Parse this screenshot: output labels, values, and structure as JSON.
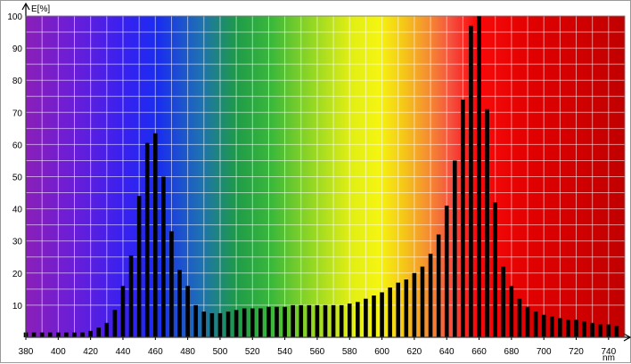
{
  "chart_data": {
    "type": "bar",
    "ylabel": "E[%]",
    "xlabel": "nm",
    "xlim": [
      380,
      750
    ],
    "ylim": [
      0,
      100
    ],
    "x_ticks": [
      380,
      400,
      420,
      440,
      460,
      480,
      500,
      520,
      540,
      560,
      580,
      600,
      620,
      640,
      660,
      680,
      700,
      720,
      740
    ],
    "y_ticks": [
      10,
      20,
      30,
      40,
      50,
      60,
      70,
      80,
      90,
      100
    ],
    "grid": true,
    "background": "visible-spectrum gradient",
    "bar_color": "#000000",
    "x": [
      380,
      385,
      390,
      395,
      400,
      405,
      410,
      415,
      420,
      425,
      430,
      435,
      440,
      445,
      450,
      455,
      460,
      465,
      470,
      475,
      480,
      485,
      490,
      495,
      500,
      505,
      510,
      515,
      520,
      525,
      530,
      535,
      540,
      545,
      550,
      555,
      560,
      565,
      570,
      575,
      580,
      585,
      590,
      595,
      600,
      605,
      610,
      615,
      620,
      625,
      630,
      635,
      640,
      645,
      650,
      655,
      660,
      665,
      670,
      675,
      680,
      685,
      690,
      695,
      700,
      705,
      710,
      715,
      720,
      725,
      730,
      735,
      740,
      745
    ],
    "values": [
      1.5,
      1.5,
      1.5,
      1.5,
      1.5,
      1.5,
      1.5,
      1.5,
      2,
      3,
      4.5,
      8.5,
      16,
      25.5,
      44,
      60.5,
      63.5,
      50,
      33,
      21,
      16,
      10,
      8,
      7.5,
      7.5,
      8,
      8.5,
      9,
      9,
      9,
      9.5,
      9.5,
      9.5,
      10,
      10,
      10,
      10,
      10,
      10,
      10,
      10.5,
      11,
      12,
      13,
      14,
      15.5,
      17,
      18,
      20,
      22,
      26,
      32,
      41,
      55,
      74,
      97,
      100,
      71,
      42,
      22,
      16,
      12,
      9.5,
      8,
      7,
      6.5,
      6,
      5.5,
      5.5,
      5,
      4.5,
      4,
      4,
      3.5
    ]
  }
}
